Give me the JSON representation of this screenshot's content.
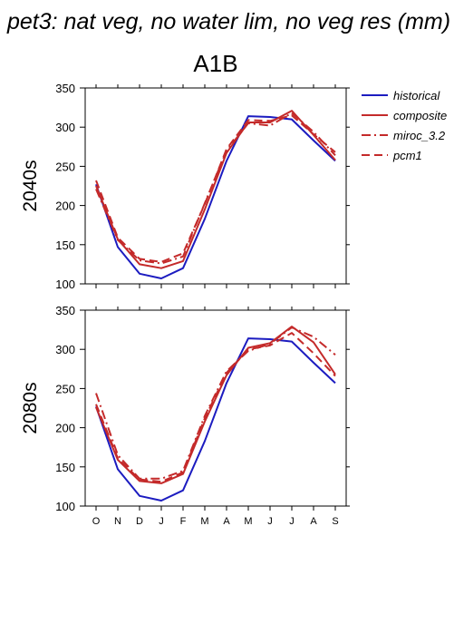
{
  "title": "pet3: nat veg, no water lim, no veg res (mm)",
  "scenario": "A1B",
  "colors": {
    "historical": "#1c1cc0",
    "models": "#c42a2a"
  },
  "chart_data": [
    {
      "type": "line",
      "panel_label": "2040s",
      "categories": [
        "O",
        "N",
        "D",
        "J",
        "F",
        "M",
        "A",
        "M",
        "J",
        "J",
        "A",
        "S"
      ],
      "ylim": [
        100,
        350
      ],
      "yticks": [
        100,
        150,
        200,
        250,
        300,
        350
      ],
      "grid": false,
      "legend_position": "right",
      "series": [
        {
          "name": "historical",
          "color": "#1c1cc0",
          "dash": "solid",
          "values": [
            227,
            147,
            113,
            107,
            120,
            183,
            257,
            314,
            313,
            310,
            283,
            257
          ]
        },
        {
          "name": "composite",
          "color": "#c42a2a",
          "dash": "solid",
          "values": [
            225,
            157,
            125,
            120,
            129,
            195,
            267,
            306,
            306,
            321,
            290,
            258
          ]
        },
        {
          "name": "miroc_3.2",
          "color": "#c42a2a",
          "dash": "dashdot",
          "values": [
            221,
            156,
            130,
            126,
            135,
            203,
            270,
            305,
            302,
            318,
            294,
            264
          ]
        },
        {
          "name": "pcm1",
          "color": "#c42a2a",
          "dash": "dash",
          "values": [
            232,
            159,
            132,
            128,
            139,
            202,
            272,
            309,
            308,
            315,
            291,
            268
          ]
        }
      ]
    },
    {
      "type": "line",
      "panel_label": "2080s",
      "categories": [
        "O",
        "N",
        "D",
        "J",
        "F",
        "M",
        "A",
        "M",
        "J",
        "J",
        "A",
        "S"
      ],
      "ylim": [
        100,
        350
      ],
      "yticks": [
        100,
        150,
        200,
        250,
        300,
        350
      ],
      "grid": false,
      "series": [
        {
          "name": "historical",
          "color": "#1c1cc0",
          "dash": "solid",
          "values": [
            227,
            147,
            113,
            107,
            120,
            183,
            257,
            314,
            313,
            310,
            283,
            257
          ]
        },
        {
          "name": "composite",
          "color": "#c42a2a",
          "dash": "solid",
          "values": [
            226,
            159,
            132,
            129,
            141,
            208,
            267,
            302,
            308,
            329,
            309,
            268
          ]
        },
        {
          "name": "miroc_3.2",
          "color": "#c42a2a",
          "dash": "dashdot",
          "values": [
            244,
            165,
            135,
            135,
            145,
            215,
            272,
            298,
            307,
            328,
            316,
            293
          ]
        },
        {
          "name": "pcm1",
          "color": "#c42a2a",
          "dash": "dash",
          "values": [
            230,
            161,
            134,
            131,
            143,
            212,
            270,
            300,
            305,
            321,
            295,
            266
          ]
        }
      ]
    }
  ]
}
